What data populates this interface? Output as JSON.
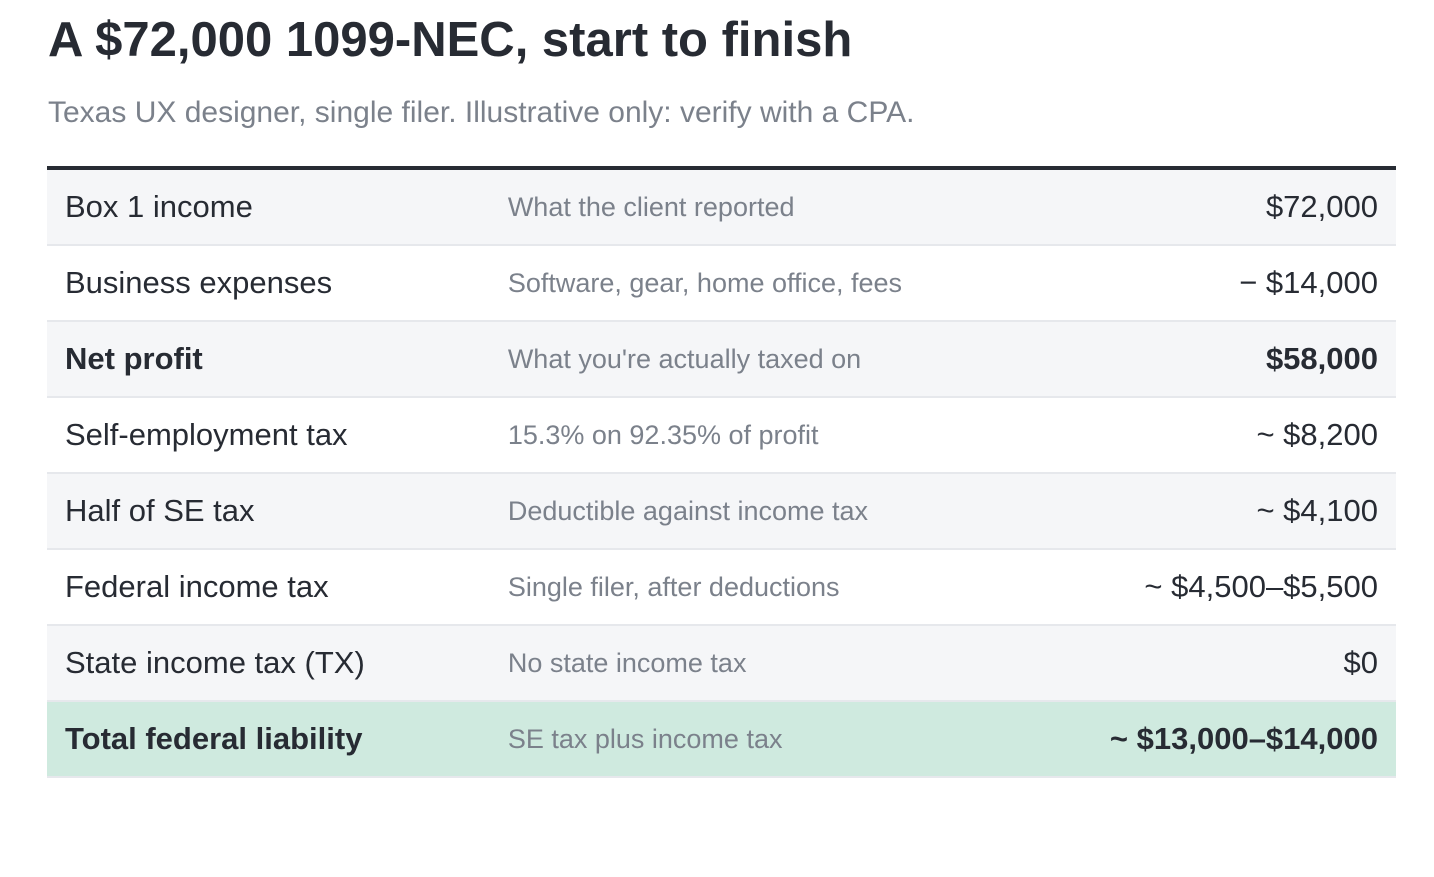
{
  "header": {
    "title": "A $72,000 1099-NEC, start to finish",
    "subtitle": "Texas UX designer, single filer. Illustrative only: verify with a CPA."
  },
  "table": {
    "rows": [
      [
        "Box 1 income",
        "What the client reported",
        "$72,000"
      ],
      [
        "Business expenses",
        "Software, gear, home office, fees",
        "− $14,000"
      ],
      [
        "Net profit",
        "What you're actually taxed on",
        "$58,000"
      ],
      [
        "Self-employment tax",
        "15.3% on 92.35% of profit",
        "~ $8,200"
      ],
      [
        "Half of SE tax",
        "Deductible against income tax",
        "~ $4,100"
      ],
      [
        "Federal income tax",
        "Single filer, after deductions",
        "~ $4,500–$5,500"
      ],
      [
        "State income tax (TX)",
        "No state income tax",
        "$0"
      ],
      [
        "Total federal liability",
        "SE tax plus income tax",
        "~ $13,000–$14,000"
      ]
    ]
  }
}
